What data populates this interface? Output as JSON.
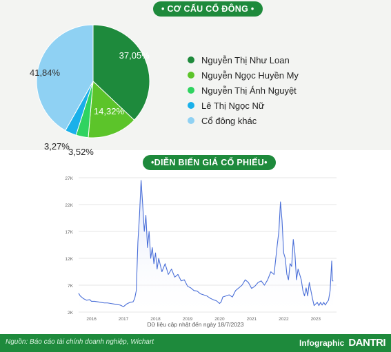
{
  "section1_title": "• CƠ CẤU CỔ ĐÔNG •",
  "section2_title": "•DIỄN BIẾN GIÁ CỔ PHIẾU•",
  "data_note": "Dữ liệu cập nhật đến ngày 18/7/2023",
  "source": "Nguồn: Báo cáo tài chính doanh nghiệp, Wichart",
  "brand_text": "Infographic",
  "brand_mark": "DANTRI",
  "colors": {
    "green_dark": "#1e8a3c",
    "line": "#4a6fd8",
    "area": "#dfe6fb"
  },
  "chart_data": [
    {
      "type": "pie",
      "title": "",
      "slices": [
        {
          "name": "Nguyễn Thị Như Loan",
          "value": 37.05,
          "label": "37,05%",
          "color": "#1e8a3c"
        },
        {
          "name": "Nguyễn Ngọc Huyền My",
          "value": 14.32,
          "label": "14,32%",
          "color": "#5cc42a"
        },
        {
          "name": "Nguyễn Thị Ánh Nguyệt",
          "value": 3.52,
          "label": "3,52%",
          "color": "#2fd360"
        },
        {
          "name": "Lê Thị Ngọc Nữ",
          "value": 3.27,
          "label": "3,27%",
          "color": "#1ab0ea"
        },
        {
          "name": "Cổ đông khác",
          "value": 41.84,
          "label": "41,84%",
          "color": "#8fd1f3"
        }
      ],
      "legend_position": "right"
    },
    {
      "type": "area",
      "title": "",
      "xlabel": "",
      "ylabel": "",
      "xlim": [
        2015.6,
        2023.65
      ],
      "ylim": [
        2000,
        27000
      ],
      "y_ticks": [
        2000,
        7000,
        12000,
        17000,
        22000,
        27000
      ],
      "y_tick_labels": [
        "2K",
        "7K",
        "12K",
        "17K",
        "22K",
        "27K"
      ],
      "x_ticks": [
        2016,
        2017,
        2018,
        2019,
        2020,
        2021,
        2022,
        2023
      ],
      "x_tick_labels": [
        "2016",
        "2017",
        "2018",
        "2019",
        "2020",
        "2021",
        "2022",
        "2023"
      ],
      "grid": true,
      "series": [
        {
          "x": [
            2015.6,
            2015.65,
            2015.75,
            2015.85,
            2015.95,
            2016.0,
            2016.1,
            2016.2,
            2016.3,
            2016.4,
            2016.5,
            2016.6,
            2016.7,
            2016.8,
            2016.9,
            2017.0,
            2017.1,
            2017.2,
            2017.3,
            2017.35,
            2017.4,
            2017.45,
            2017.5,
            2017.55,
            2017.6,
            2017.65,
            2017.7,
            2017.75,
            2017.8,
            2017.85,
            2017.9,
            2017.95,
            2018.0,
            2018.05,
            2018.1,
            2018.2,
            2018.3,
            2018.4,
            2018.5,
            2018.6,
            2018.7,
            2018.8,
            2018.9,
            2019.0,
            2019.1,
            2019.2,
            2019.3,
            2019.4,
            2019.5,
            2019.6,
            2019.7,
            2019.8,
            2019.9,
            2020.0,
            2020.05,
            2020.1,
            2020.2,
            2020.3,
            2020.4,
            2020.5,
            2020.6,
            2020.7,
            2020.8,
            2020.9,
            2021.0,
            2021.1,
            2021.2,
            2021.3,
            2021.4,
            2021.5,
            2021.6,
            2021.7,
            2021.8,
            2021.85,
            2021.9,
            2021.95,
            2022.0,
            2022.05,
            2022.1,
            2022.15,
            2022.2,
            2022.25,
            2022.3,
            2022.35,
            2022.4,
            2022.45,
            2022.5,
            2022.55,
            2022.6,
            2022.65,
            2022.7,
            2022.75,
            2022.8,
            2022.85,
            2022.9,
            2022.95,
            2023.0,
            2023.05,
            2023.1,
            2023.15,
            2023.2,
            2023.25,
            2023.3,
            2023.35,
            2023.4,
            2023.45,
            2023.5,
            2023.52,
            2023.55
          ],
          "y": [
            5500,
            5000,
            4500,
            4200,
            4300,
            4000,
            4000,
            3900,
            3800,
            3700,
            3700,
            3600,
            3500,
            3400,
            3300,
            3000,
            3500,
            3800,
            3900,
            4500,
            6000,
            15000,
            20000,
            26500,
            22000,
            17000,
            20000,
            14000,
            17000,
            12000,
            14000,
            11000,
            13000,
            10000,
            12000,
            9500,
            11000,
            9000,
            10000,
            8500,
            9000,
            7800,
            8000,
            6800,
            6500,
            6000,
            5900,
            5400,
            5200,
            5000,
            4600,
            4300,
            4100,
            3600,
            3900,
            4800,
            5000,
            5200,
            4800,
            6000,
            6500,
            7000,
            8000,
            7500,
            6400,
            6800,
            7500,
            7800,
            7000,
            8000,
            9500,
            9000,
            14500,
            17000,
            22500,
            19000,
            13000,
            12000,
            9000,
            8000,
            11000,
            10500,
            15500,
            13000,
            8000,
            10000,
            9000,
            8000,
            6000,
            5000,
            6500,
            5000,
            7500,
            6000,
            4500,
            3200,
            3500,
            3800,
            3200,
            3800,
            3300,
            3800,
            3300,
            3800,
            4200,
            6000,
            11500,
            7800,
            7800
          ]
        }
      ]
    }
  ]
}
